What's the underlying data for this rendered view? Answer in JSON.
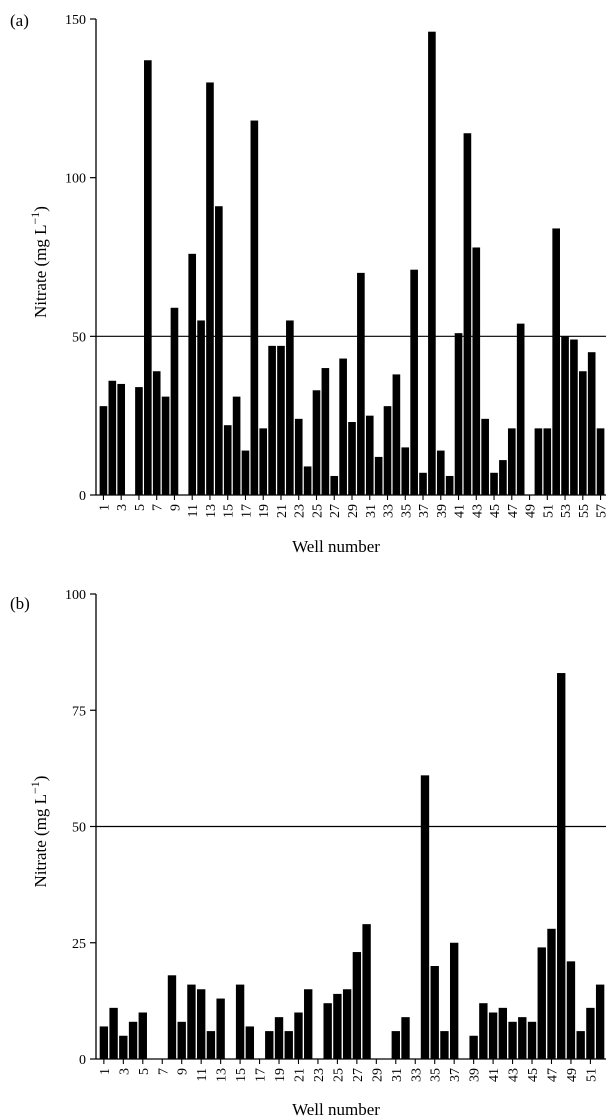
{
  "chart_data": [
    {
      "type": "bar",
      "panel_label": "(a)",
      "xlabel": "Well number",
      "ylabel_main": "Nitrate (mg L",
      "ylabel_sup": "−1",
      "ylabel_close": ")",
      "ylim": [
        0,
        150
      ],
      "yticks": [
        0,
        50,
        100,
        150
      ],
      "reference_line": 50,
      "categories": [
        "1",
        "2",
        "3",
        "4",
        "5",
        "6",
        "7",
        "8",
        "9",
        "10",
        "11",
        "12",
        "13",
        "14",
        "15",
        "16",
        "17",
        "18",
        "19",
        "20",
        "21",
        "22",
        "23",
        "24",
        "25",
        "26",
        "27",
        "28",
        "29",
        "30",
        "31",
        "32",
        "33",
        "34",
        "35",
        "36",
        "37",
        "38",
        "39",
        "40",
        "41",
        "42",
        "43",
        "44",
        "45",
        "46",
        "47",
        "48",
        "49",
        "50",
        "51",
        "52",
        "53",
        "54",
        "55",
        "56",
        "57"
      ],
      "xtick_labels": [
        "1",
        "3",
        "5",
        "7",
        "9",
        "11",
        "13",
        "15",
        "17",
        "19",
        "21",
        "23",
        "25",
        "27",
        "29",
        "31",
        "33",
        "35",
        "37",
        "39",
        "41",
        "43",
        "45",
        "47",
        "49",
        "51",
        "53",
        "55",
        "57"
      ],
      "values": [
        28,
        36,
        35,
        0,
        34,
        137,
        39,
        31,
        59,
        0,
        76,
        55,
        130,
        91,
        22,
        31,
        14,
        118,
        21,
        47,
        47,
        55,
        24,
        9,
        33,
        40,
        6,
        43,
        23,
        70,
        25,
        12,
        28,
        38,
        15,
        71,
        7,
        146,
        14,
        6,
        51,
        114,
        78,
        24,
        7,
        11,
        21,
        54,
        0,
        21,
        21,
        84,
        50,
        49,
        39,
        45,
        21
      ]
    },
    {
      "type": "bar",
      "panel_label": "(b)",
      "xlabel": "Well number",
      "ylabel_main": "Nitrate (mg L",
      "ylabel_sup": "−1",
      "ylabel_close": ")",
      "ylim": [
        0,
        100
      ],
      "yticks": [
        0,
        25,
        50,
        75,
        100
      ],
      "reference_line": 50,
      "categories": [
        "1",
        "2",
        "3",
        "4",
        "5",
        "6",
        "7",
        "8",
        "9",
        "10",
        "11",
        "12",
        "13",
        "14",
        "15",
        "16",
        "17",
        "18",
        "19",
        "20",
        "21",
        "22",
        "23",
        "24",
        "25",
        "26",
        "27",
        "28",
        "29",
        "30",
        "31",
        "32",
        "33",
        "34",
        "35",
        "36",
        "37",
        "38",
        "39",
        "40",
        "41",
        "42",
        "43",
        "44",
        "45",
        "46",
        "47",
        "48",
        "49",
        "50",
        "51",
        "52"
      ],
      "xtick_labels": [
        "1",
        "3",
        "5",
        "7",
        "9",
        "11",
        "13",
        "15",
        "17",
        "19",
        "21",
        "23",
        "25",
        "27",
        "29",
        "31",
        "33",
        "35",
        "37",
        "39",
        "41",
        "43",
        "45",
        "47",
        "49",
        "51"
      ],
      "values": [
        7,
        11,
        5,
        8,
        10,
        0,
        0,
        18,
        8,
        16,
        15,
        6,
        13,
        0,
        16,
        7,
        0,
        6,
        9,
        6,
        10,
        15,
        0,
        12,
        14,
        15,
        23,
        29,
        0,
        0,
        6,
        9,
        0,
        61,
        20,
        6,
        25,
        0,
        5,
        12,
        10,
        11,
        8,
        9,
        8,
        24,
        28,
        83,
        21,
        6,
        11,
        16
      ]
    }
  ]
}
